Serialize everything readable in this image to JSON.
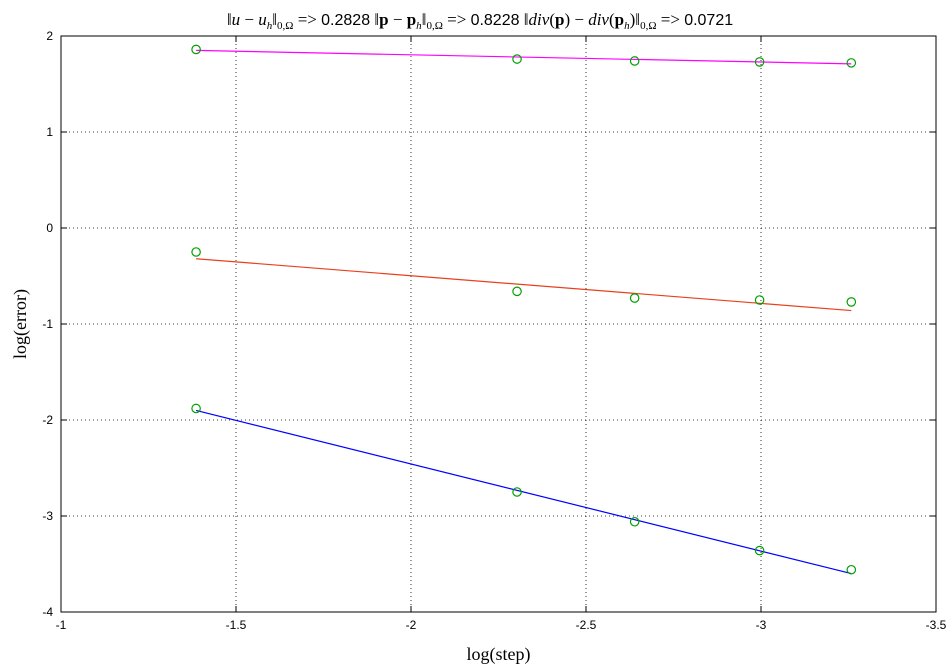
{
  "chart_data": {
    "type": "line",
    "title_parts": {
      "err1_value": "0.2828",
      "err2_value": "0.8228",
      "err3_value": "0.0721",
      "arrow": "=>"
    },
    "xlabel": "log(step)",
    "ylabel": "log(error)",
    "xlim": [
      -1,
      -3.5
    ],
    "ylim": [
      -4,
      2
    ],
    "x_reversed": true,
    "grid": true,
    "xticks": [
      -1,
      -1.5,
      -2,
      -2.5,
      -3,
      -3.5
    ],
    "xtick_labels": [
      "-1",
      "-1.5",
      "-2",
      "-2.5",
      "-3",
      "-3.5"
    ],
    "yticks": [
      -4,
      -3,
      -2,
      -1,
      0,
      1,
      2
    ],
    "ytick_labels": [
      "-4",
      "-3",
      "-2",
      "-1",
      "0",
      "1",
      "2"
    ],
    "x": [
      -1.386,
      -2.303,
      -2.639,
      -2.996,
      -3.258
    ],
    "series": [
      {
        "points": [
          1.86,
          1.76,
          1.74,
          1.73,
          1.72
        ],
        "fit": [
          1.85,
          1.71
        ],
        "line_color": "#ff00ff",
        "marker_color": "#00a000"
      },
      {
        "points": [
          -0.25,
          -0.66,
          -0.73,
          -0.75,
          -0.77
        ],
        "fit": [
          -0.32,
          -0.86
        ],
        "line_color": "#e8401c",
        "marker_color": "#00a000"
      },
      {
        "points": [
          -1.88,
          -2.75,
          -3.06,
          -3.36,
          -3.56
        ],
        "fit": [
          -1.9,
          -3.6
        ],
        "line_color": "#0000ff",
        "marker_color": "#00a000"
      }
    ]
  }
}
